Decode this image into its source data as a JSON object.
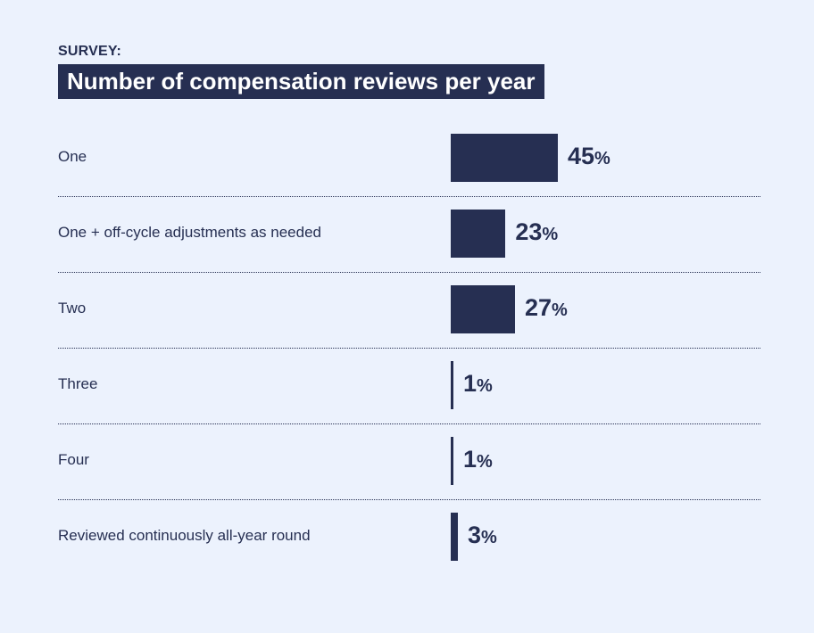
{
  "header": {
    "eyebrow": "SURVEY:",
    "title": "Number of compensation reviews per year"
  },
  "colors": {
    "background": "#ecf2fd",
    "bar": "#262f52",
    "text": "#262f52",
    "title_text": "#ffffff"
  },
  "chart_data": {
    "type": "bar",
    "orientation": "horizontal",
    "title": "Number of compensation reviews per year",
    "categories": [
      "One",
      "One + off-cycle adjustments as needed",
      "Two",
      "Three",
      "Four",
      "Reviewed continuously all-year round"
    ],
    "values": [
      45,
      23,
      27,
      1,
      1,
      3
    ],
    "value_suffix": "%",
    "xlabel": "",
    "ylabel": "",
    "xlim": [
      0,
      100
    ],
    "grid": false,
    "legend": "none"
  }
}
